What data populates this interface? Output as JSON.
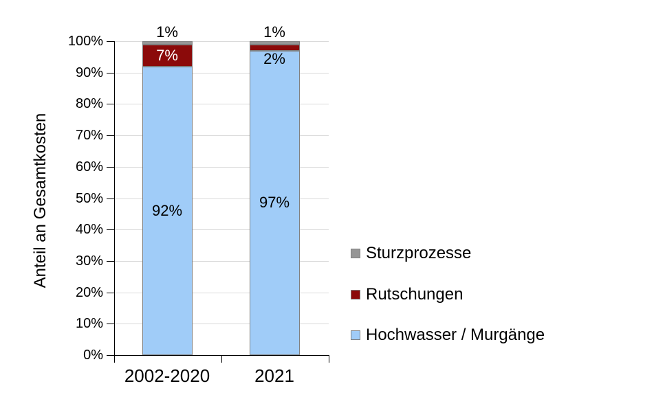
{
  "chart_data": {
    "type": "bar",
    "stacked": true,
    "title": "",
    "xlabel": "",
    "ylabel": "Anteil an Gesamtkosten",
    "ylim": [
      0,
      100
    ],
    "ytick_step": 10,
    "ytick_labels": [
      "0%",
      "10%",
      "20%",
      "30%",
      "40%",
      "50%",
      "60%",
      "70%",
      "80%",
      "90%",
      "100%"
    ],
    "categories": [
      "2002-2020",
      "2021"
    ],
    "series": [
      {
        "name": "Hochwasser / Murgänge",
        "color": "#A0CCF8",
        "values": [
          92,
          97
        ]
      },
      {
        "name": "Rutschungen",
        "color": "#8B0A0A",
        "values": [
          7,
          2
        ]
      },
      {
        "name": "Sturzprozesse",
        "color": "#969696",
        "values": [
          1,
          1
        ]
      }
    ],
    "data_labels": [
      {
        "category_index": 0,
        "series": "Hochwasser / Murgänge",
        "text": "92%",
        "placement": "segment-center",
        "color": "#000000"
      },
      {
        "category_index": 0,
        "series": "Rutschungen",
        "text": "7%",
        "placement": "segment-center",
        "color": "#FFFFFF"
      },
      {
        "category_index": 0,
        "series": "Sturzprozesse",
        "text": "1%",
        "placement": "above-bar",
        "color": "#000000"
      },
      {
        "category_index": 1,
        "series": "Hochwasser / Murgänge",
        "text": "97%",
        "placement": "segment-center",
        "color": "#000000"
      },
      {
        "category_index": 1,
        "series": "Rutschungen",
        "text": "2%",
        "placement": "below-segment",
        "color": "#000000"
      },
      {
        "category_index": 1,
        "series": "Sturzprozesse",
        "text": "1%",
        "placement": "above-bar",
        "color": "#000000"
      }
    ],
    "legend": {
      "position": "right",
      "entries": [
        {
          "label": "Sturzprozesse",
          "color": "#969696"
        },
        {
          "label": "Rutschungen",
          "color": "#8B0A0A"
        },
        {
          "label": "Hochwasser / Murgänge",
          "color": "#A0CCF8"
        }
      ]
    },
    "grid": true,
    "gridline_color": "#D9D9D9",
    "background_color": "#FFFFFF"
  }
}
